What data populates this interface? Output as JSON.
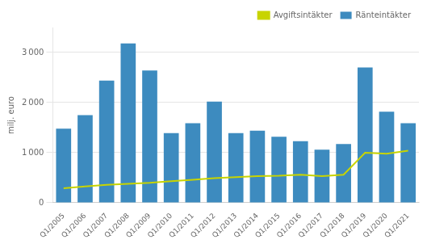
{
  "chart_data": {
    "type": "bar",
    "ylabel": "milj. euro",
    "categories": [
      "Q1/2005",
      "Q1/2006",
      "Q1/2007",
      "Q1/2008",
      "Q1/2009",
      "Q1/2010",
      "Q1/2011",
      "Q1/2012",
      "Q1/2013",
      "Q1/2014",
      "Q1/2015",
      "Q1/2016",
      "Q1/2017",
      "Q1/2018",
      "Q1/2019",
      "Q1/2020",
      "Q1/2021"
    ],
    "series": [
      {
        "name": "Ränteintäkter",
        "type": "bar",
        "color": "#3d8bbf",
        "values": [
          1480,
          1750,
          2440,
          3180,
          2640,
          1390,
          1590,
          2020,
          1390,
          1440,
          1320,
          1230,
          1060,
          1175,
          2700,
          1820,
          1590
        ]
      },
      {
        "name": "Avgiftsintäkter",
        "type": "line",
        "color": "#c8d400",
        "marker": "none",
        "values": [
          290,
          325,
          360,
          380,
          400,
          430,
          460,
          490,
          510,
          530,
          540,
          560,
          530,
          560,
          1000,
          980,
          1040
        ]
      }
    ],
    "ylim": [
      0,
      3500
    ],
    "yticks": [
      0,
      {
        "value": 1000,
        "label": "1 000"
      },
      {
        "value": 2000,
        "label": "2 000"
      },
      {
        "value": 3000,
        "label": "3 000"
      }
    ],
    "grid": "y",
    "legend": "upper right"
  }
}
